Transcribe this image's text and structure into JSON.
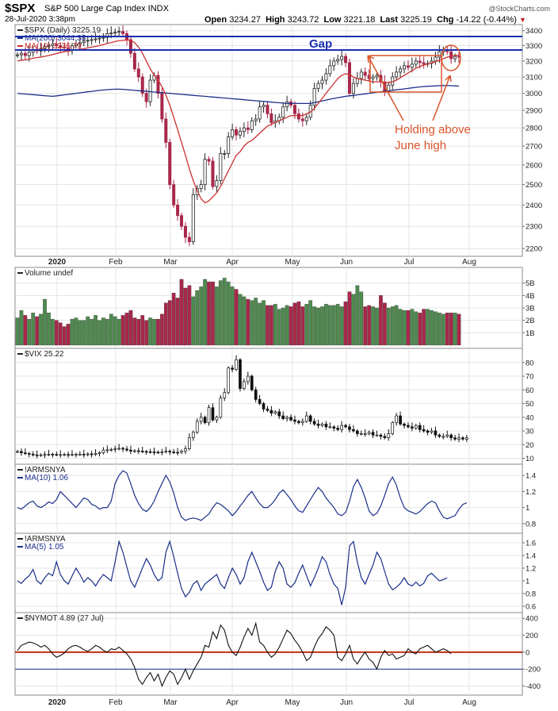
{
  "header": {
    "symbol": "$SPX",
    "description": "S&P 500 Large Cap Index INDX",
    "date": "28-Jul-2020 3:38pm",
    "open_label": "Open",
    "open": "3234.27",
    "high_label": "High",
    "high": "3243.72",
    "low_label": "Low",
    "low": "3221.18",
    "last_label": "Last",
    "last": "3225.19",
    "chg_label": "Chg",
    "chg": "-14.22 (-0.44%)",
    "credit": "@StockCharts.com"
  },
  "x_axis": {
    "labels": [
      "2020",
      "Feb",
      "Mar",
      "Apr",
      "May",
      "Jun",
      "Jul",
      "Aug"
    ]
  },
  "colors": {
    "up": "#4f8a4f",
    "down": "#a8284a",
    "ma200": "#1a2f8a",
    "ma10": "#cc3030",
    "annotation": "#d9542b",
    "gap": "#1a2fb0",
    "line": "#1a2f8a",
    "zero": "#c03010"
  },
  "chart_data": [
    {
      "type": "candlestick",
      "legend": [
        "$SPX (Daily) 3225.19",
        "MA(200) 3044.38",
        "MA(10) 3236.79"
      ],
      "ylim": [
        2180,
        3420
      ],
      "yticks": [
        2200,
        2300,
        2400,
        2500,
        2600,
        2700,
        2800,
        2900,
        3000,
        3100,
        3200,
        3300,
        3400
      ],
      "y_scale": "log",
      "close": [
        3240,
        3250,
        3235,
        3257,
        3275,
        3265,
        3280,
        3295,
        3300,
        3310,
        3300,
        3290,
        3285,
        3270,
        3300,
        3310,
        3320,
        3330,
        3335,
        3340,
        3345,
        3350,
        3355,
        3380,
        3385,
        3390,
        3395,
        3380,
        3340,
        3250,
        3150,
        3100,
        3000,
        2950,
        3080,
        3110,
        3000,
        2850,
        2720,
        2500,
        2400,
        2350,
        2300,
        2250,
        2230,
        2450,
        2480,
        2500,
        2630,
        2620,
        2490,
        2520,
        2660,
        2660,
        2750,
        2790,
        2760,
        2780,
        2800,
        2790,
        2840,
        2850,
        2920,
        2930,
        2880,
        2830,
        2840,
        2860,
        2920,
        2950,
        2930,
        2880,
        2850,
        2840,
        2860,
        2930,
        3030,
        3060,
        3080,
        3120,
        3170,
        3200,
        3210,
        3230,
        3190,
        3000,
        3060,
        3090,
        3130,
        3110,
        3090,
        3100,
        3110,
        3070,
        3010,
        3050,
        3100,
        3130,
        3150,
        3170,
        3160,
        3180,
        3200,
        3190,
        3180,
        3185,
        3200,
        3225,
        3260,
        3270,
        3260,
        3215,
        3230,
        3225
      ],
      "ma200": [
        3000,
        2998,
        2996,
        2994,
        2992,
        2990,
        2988,
        2986,
        2984,
        2982,
        2985,
        2988,
        2991,
        2994,
        2997,
        3000,
        3003,
        3006,
        3009,
        3012,
        3015,
        3018,
        3020,
        3022,
        3024,
        3025,
        3025,
        3024,
        3022,
        3020,
        3018,
        3016,
        3014,
        3012,
        3010,
        3008,
        3006,
        3004,
        3002,
        3000,
        2998,
        2996,
        2994,
        2992,
        2990,
        2988,
        2986,
        2984,
        2982,
        2980,
        2978,
        2976,
        2974,
        2972,
        2970,
        2968,
        2966,
        2964,
        2962,
        2960,
        2958,
        2956,
        2954,
        2952,
        2950,
        2948,
        2946,
        2944,
        2942,
        2940,
        2940,
        2940,
        2940,
        2940,
        2940,
        2940,
        2945,
        2950,
        2955,
        2960,
        2965,
        2970,
        2974,
        2978,
        2982,
        2985,
        2988,
        2991,
        2994,
        2997,
        3000,
        3003,
        3006,
        3009,
        3012,
        3015,
        3018,
        3021,
        3024,
        3027,
        3030,
        3033,
        3036,
        3039,
        3041,
        3043,
        3044,
        3045,
        3046,
        3047,
        3048,
        3046,
        3045,
        3044
      ],
      "ma10": [
        3200,
        3205,
        3208,
        3212,
        3218,
        3222,
        3226,
        3230,
        3236,
        3242,
        3248,
        3255,
        3260,
        3264,
        3268,
        3272,
        3276,
        3280,
        3285,
        3290,
        3295,
        3300,
        3308,
        3315,
        3320,
        3328,
        3332,
        3335,
        3338,
        3335,
        3320,
        3290,
        3250,
        3200,
        3150,
        3110,
        3080,
        3040,
        2990,
        2930,
        2860,
        2790,
        2720,
        2650,
        2580,
        2520,
        2470,
        2430,
        2410,
        2420,
        2440,
        2460,
        2490,
        2530,
        2570,
        2610,
        2650,
        2670,
        2700,
        2720,
        2730,
        2750,
        2770,
        2790,
        2810,
        2820,
        2830,
        2840,
        2850,
        2860,
        2870,
        2870,
        2870,
        2870,
        2880,
        2890,
        2910,
        2940,
        2970,
        3000,
        3030,
        3060,
        3090,
        3110,
        3120,
        3115,
        3100,
        3090,
        3085,
        3080,
        3075,
        3070,
        3070,
        3070,
        3065,
        3065,
        3070,
        3080,
        3095,
        3110,
        3125,
        3140,
        3155,
        3165,
        3175,
        3180,
        3188,
        3195,
        3205,
        3215,
        3225,
        3232,
        3236,
        3237
      ],
      "annotations": [
        "Gap",
        "Holding above",
        "June high"
      ]
    },
    {
      "type": "bar",
      "legend": [
        "Volume undef"
      ],
      "ylim": [
        0,
        6
      ],
      "yticks": [
        1,
        2,
        3,
        4,
        5
      ],
      "ytick_labels": [
        "1B",
        "2B",
        "3B",
        "4B",
        "5B"
      ],
      "values": [
        2.2,
        2.8,
        2.4,
        2.1,
        2.6,
        2.3,
        2.5,
        3.7,
        2.6,
        2.1,
        2.0,
        1.8,
        1.5,
        1.7,
        2.1,
        2.2,
        2.0,
        2.0,
        2.3,
        2.1,
        2.4,
        2.0,
        2.2,
        2.1,
        2.5,
        2.3,
        2.1,
        2.4,
        2.6,
        2.8,
        2.2,
        2.1,
        2.4,
        2.0,
        2.2,
        2.1,
        2.1,
        2.5,
        3.4,
        3.6,
        4.2,
        3.8,
        5.3,
        4.6,
        4.8,
        3.9,
        4.4,
        4.7,
        5.3,
        5.1,
        5.1,
        4.7,
        5.2,
        5.4,
        5.1,
        4.7,
        4.5,
        4.1,
        3.9,
        3.7,
        3.6,
        3.8,
        3.4,
        3.6,
        3.2,
        3.2,
        3.3,
        2.9,
        3.0,
        3.2,
        3.1,
        3.4,
        3.5,
        3.1,
        3.3,
        3.6,
        3.1,
        3.0,
        3.1,
        3.3,
        3.2,
        3.2,
        3.3,
        3.1,
        3.5,
        4.3,
        4.1,
        4.8,
        4.3,
        3.1,
        3.2,
        3.1,
        3.0,
        4.0,
        3.4,
        3.0,
        3.1,
        3.2,
        2.9,
        2.8,
        2.8,
        2.9,
        2.7,
        2.6,
        2.9,
        2.9,
        2.8,
        2.7,
        2.6,
        2.5,
        2.6,
        2.6,
        2.6,
        2.5
      ]
    },
    {
      "type": "line",
      "legend": [
        "$VIX 25.22"
      ],
      "ylim": [
        8,
        88
      ],
      "yticks": [
        10,
        20,
        30,
        40,
        50,
        60,
        70,
        80
      ],
      "values": [
        15,
        14,
        13.5,
        13,
        12.5,
        12.3,
        12.5,
        12.8,
        13,
        12.8,
        12.7,
        12.7,
        12.8,
        12.6,
        12.8,
        13,
        13,
        12.6,
        13.2,
        12.8,
        13.5,
        14,
        16,
        16.2,
        16.5,
        17,
        17.3,
        16.8,
        16,
        15.2,
        15.5,
        15.3,
        15,
        14.8,
        14.6,
        14.5,
        14.4,
        14.7,
        15.2,
        14.6,
        14.4,
        14.3,
        15.3,
        17,
        25,
        29,
        37,
        40,
        36,
        47,
        38,
        40,
        54,
        58,
        76,
        75,
        82,
        61,
        66,
        70,
        60,
        53,
        50,
        46,
        45,
        43,
        44,
        41,
        39,
        40,
        38,
        37,
        36,
        37,
        41,
        37,
        35,
        34,
        35,
        33,
        33,
        32,
        31,
        34,
        33,
        31,
        30,
        28,
        28,
        28,
        29,
        27,
        27,
        26,
        25,
        28,
        36,
        41,
        35,
        34,
        33,
        32,
        34,
        31,
        30,
        29,
        30,
        27,
        26,
        26,
        27,
        25,
        24,
        25,
        24,
        25
      ]
    },
    {
      "type": "line",
      "legend": [
        "!ARMSNYA",
        "MA(10) 1.06"
      ],
      "ylim": [
        0.72,
        1.5
      ],
      "yticks": [
        0.8,
        1.0,
        1.2,
        1.4
      ],
      "values": [
        1.0,
        0.98,
        1.02,
        1.06,
        1.08,
        1.02,
        1.0,
        1.03,
        1.07,
        1.05,
        1.1,
        1.2,
        1.15,
        1.1,
        1.05,
        1.0,
        1.06,
        1.12,
        1.1,
        1.04,
        1.02,
        0.98,
        1.0,
        1.0,
        1.08,
        1.3,
        1.4,
        1.46,
        1.43,
        1.3,
        1.15,
        1.05,
        0.98,
        0.95,
        1.0,
        1.08,
        1.2,
        1.3,
        1.4,
        1.32,
        1.18,
        1.0,
        0.88,
        0.84,
        0.86,
        0.87,
        0.86,
        0.84,
        0.88,
        0.92,
        1.0,
        1.06,
        1.04,
        1.0,
        0.96,
        0.9,
        0.95,
        1.02,
        1.08,
        1.15,
        1.2,
        1.12,
        1.05,
        1.0,
        1.0,
        1.04,
        1.1,
        1.18,
        1.22,
        1.16,
        1.1,
        1.02,
        0.96,
        0.94,
        1.02,
        1.1,
        1.18,
        1.25,
        1.2,
        1.12,
        1.06,
        1.0,
        0.92,
        0.9,
        0.94,
        1.08,
        1.26,
        1.35,
        1.25,
        1.12,
        0.96,
        0.9,
        0.93,
        1.02,
        1.15,
        1.3,
        1.38,
        1.28,
        1.12,
        1.0,
        0.96,
        0.94,
        0.92,
        0.95,
        1.0,
        1.05,
        1.08,
        1.06,
        0.96,
        0.88,
        0.86,
        0.88,
        0.9,
        0.98,
        1.04,
        1.06
      ],
      "ma_period": 10
    },
    {
      "type": "line",
      "legend": [
        "!ARMSNYA",
        "MA(5) 1.05"
      ],
      "ylim": [
        0.55,
        1.7
      ],
      "yticks": [
        0.6,
        0.8,
        1.0,
        1.2,
        1.4,
        1.6
      ],
      "values": [
        1.0,
        0.96,
        1.03,
        1.08,
        1.18,
        1.0,
        0.95,
        1.05,
        1.12,
        1.08,
        1.3,
        1.1,
        1.0,
        0.95,
        1.08,
        1.2,
        1.1,
        0.98,
        1.05,
        1.0,
        0.92,
        1.02,
        1.1,
        1.05,
        1.0,
        1.3,
        1.62,
        1.45,
        1.22,
        1.0,
        0.9,
        1.05,
        1.2,
        1.35,
        1.25,
        1.1,
        1.0,
        1.05,
        1.45,
        1.62,
        1.38,
        1.12,
        0.88,
        0.75,
        0.82,
        0.95,
        1.0,
        0.85,
        0.95,
        1.0,
        1.05,
        1.1,
        0.95,
        0.88,
        1.05,
        1.2,
        1.1,
        0.95,
        1.05,
        1.3,
        1.45,
        1.3,
        1.15,
        0.98,
        0.85,
        0.9,
        1.15,
        1.3,
        1.2,
        0.95,
        0.9,
        0.97,
        1.12,
        1.25,
        1.08,
        0.92,
        1.05,
        1.2,
        1.38,
        1.3,
        1.1,
        0.95,
        0.88,
        0.62,
        0.9,
        1.55,
        1.62,
        1.3,
        1.05,
        0.95,
        1.1,
        1.25,
        1.45,
        1.35,
        1.15,
        0.95,
        0.86,
        0.9,
        0.96,
        1.05,
        0.95,
        0.92,
        0.98,
        0.92,
        0.96,
        1.08,
        1.12,
        1.06,
        1.0,
        1.02,
        1.05
      ],
      "ma_period": 5
    },
    {
      "type": "line",
      "legend": [
        "$NYMOT 4.89 (27 Jul)"
      ],
      "ylim": [
        -470,
        430
      ],
      "yticks": [
        -400,
        -200,
        0,
        200,
        400
      ],
      "values": [
        20,
        80,
        100,
        120,
        110,
        90,
        60,
        80,
        40,
        -20,
        -60,
        -40,
        -10,
        40,
        70,
        80,
        60,
        30,
        10,
        40,
        80,
        60,
        20,
        0,
        40,
        30,
        60,
        20,
        -20,
        -80,
        -180,
        -320,
        -380,
        -300,
        -240,
        -340,
        -260,
        -400,
        -300,
        -220,
        -260,
        -380,
        -300,
        -200,
        -320,
        -220,
        -140,
        -60,
        80,
        60,
        240,
        160,
        320,
        260,
        80,
        0,
        -40,
        60,
        180,
        280,
        200,
        340,
        120,
        80,
        0,
        -60,
        -20,
        60,
        160,
        260,
        220,
        140,
        80,
        0,
        -100,
        -60,
        60,
        160,
        220,
        300,
        260,
        200,
        -60,
        -100,
        -20,
        80,
        -80,
        -140,
        -60,
        0,
        -80,
        -120,
        -200,
        -60,
        20,
        -40,
        -20,
        -80,
        -60,
        -40,
        40,
        0,
        -20,
        40,
        60,
        80,
        40,
        0,
        20,
        40,
        20,
        -20
      ]
    }
  ]
}
